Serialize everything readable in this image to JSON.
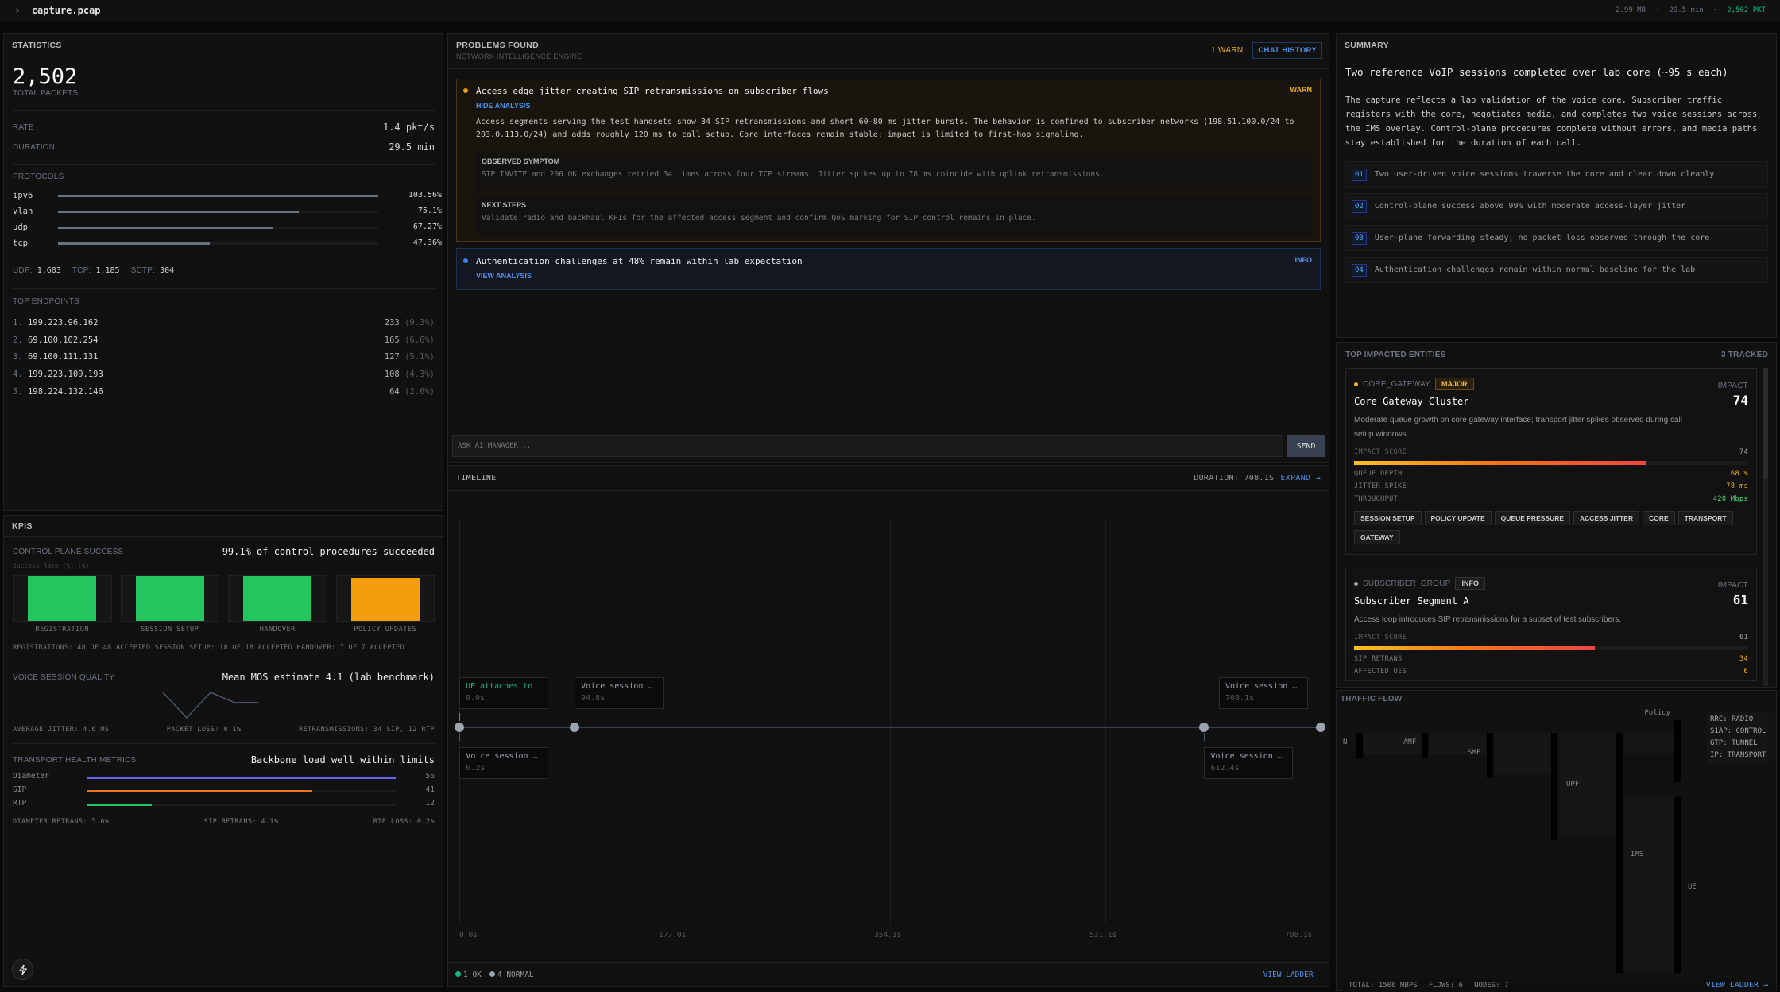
{
  "topbar": {
    "file": "capture.pcap",
    "size": "2.99 MB",
    "duration": "29.5 min",
    "packets": "2,502 PKT",
    "sep": "·"
  },
  "stats": {
    "title": "STATISTICS",
    "total": "2,502",
    "total_label": "TOTAL PACKETS",
    "rate_label": "RATE",
    "rate": "1.4 pkt/s",
    "duration_label": "DURATION",
    "duration": "29.5 min",
    "protocols_label": "PROTOCOLS",
    "protocols": [
      {
        "name": "ipv6",
        "pct": "103.56%",
        "value": 103.56
      },
      {
        "name": "vlan",
        "pct": "75.1%",
        "value": 75.1
      },
      {
        "name": "udp",
        "pct": "67.27%",
        "value": 67.27
      },
      {
        "name": "tcp",
        "pct": "47.36%",
        "value": 47.36
      }
    ],
    "counts": [
      {
        "label": "UDP:",
        "value": "1,683"
      },
      {
        "label": "TCP:",
        "value": "1,185"
      },
      {
        "label": "SCTP:",
        "value": "304"
      }
    ],
    "endpoints_label": "TOP ENDPOINTS",
    "endpoints": [
      {
        "rank": "1.",
        "ip": "199.223.96.162",
        "count": "233",
        "pct": "(9.3%)"
      },
      {
        "rank": "2.",
        "ip": "69.100.102.254",
        "count": "165",
        "pct": "(6.6%)"
      },
      {
        "rank": "3.",
        "ip": "69.100.111.131",
        "count": "127",
        "pct": "(5.1%)"
      },
      {
        "rank": "4.",
        "ip": "199.223.109.193",
        "count": "108",
        "pct": "(4.3%)"
      },
      {
        "rank": "5.",
        "ip": "198.224.132.146",
        "count": "64",
        "pct": "(2.6%)"
      }
    ]
  },
  "kpis": {
    "title": "KPIS",
    "control": {
      "label": "CONTROL PLANE SUCCESS",
      "headline": "99.1% of control procedures succeeded",
      "axis": "Success Rate (%) (%)",
      "bars": [
        {
          "name": "REGISTRATION",
          "value": 100,
          "color": "#22c55e"
        },
        {
          "name": "SESSION SETUP",
          "value": 100,
          "color": "#22c55e"
        },
        {
          "name": "HANDOVER",
          "value": 100,
          "color": "#22c55e"
        },
        {
          "name": "POLICY UPDATES",
          "value": 96,
          "color": "#f59e0b"
        }
      ],
      "footer": "REGISTRATIONS: 48 OF 48 ACCEPTED SESSION SETUP: 18 OF 18 ACCEPTED HANDOVER: 7 OF 7 ACCEPTED"
    },
    "voice": {
      "label": "VOICE SESSION QUALITY",
      "headline": "Mean MOS estimate 4.1 (lab benchmark)",
      "spark": [
        4.1,
        3.6,
        4.1,
        3.9,
        3.9
      ],
      "stats": [
        "AVERAGE JITTER: 4.6 MS",
        "PACKET LOSS: 0.1%",
        "RETRANSMISSIONS: 34 SIP, 12 RTP"
      ]
    },
    "transport": {
      "label": "TRANSPORT HEALTH METRICS",
      "headline": "Backbone load well within limits",
      "rows": [
        {
          "name": "Diameter",
          "value": "56",
          "fraction": 1.0,
          "color": "#6366f1"
        },
        {
          "name": "SIP",
          "value": "41",
          "fraction": 0.73,
          "color": "#f97316"
        },
        {
          "name": "RTP",
          "value": "12",
          "fraction": 0.21,
          "color": "#22c55e"
        }
      ],
      "stats": [
        "DIAMETER RETRANS: 5.6%",
        "SIP RETRANS: 4.1%",
        "RTP LOSS: 0.2%"
      ]
    }
  },
  "problems": {
    "title": "PROBLEMS FOUND",
    "subtitle": "NETWORK INTELLIGENCE ENGINE",
    "warn_count": "1 WARN",
    "chat_history": "CHAT HISTORY",
    "items": [
      {
        "title": "Access edge jitter creating SIP retransmissions on subscriber flows",
        "severity": "WARN",
        "toggle": "HIDE ANALYSIS",
        "body": "Access segments serving the test handsets show 34 SIP retransmissions and short 60-80 ms jitter bursts. The behavior is confined to subscriber networks (198.51.100.0/24 to 203.0.113.0/24) and adds roughly 120 ms to call setup. Core interfaces remain stable; impact is limited to first-hop signaling.",
        "symptom_label": "OBSERVED SYMPTOM",
        "symptom": "SIP INVITE and 200 OK exchanges retried 34 times across four TCP streams. Jitter spikes up to 78 ms coincide with uplink retransmissions.",
        "next_label": "NEXT STEPS",
        "next": "Validate radio and backhaul KPIs for the affected access segment and confirm QoS marking for SIP control remains in place."
      },
      {
        "title": "Authentication challenges at 48% remain within lab expectation",
        "severity": "INFO",
        "toggle": "VIEW ANALYSIS"
      }
    ],
    "input_placeholder": "ASK AI MANAGER...",
    "send": "SEND"
  },
  "timeline": {
    "title": "TIMELINE",
    "duration": "DURATION: 708.1S",
    "expand": "EXPAND →",
    "ticks": [
      "0.0s",
      "177.0s",
      "354.1s",
      "531.1s",
      "708.1s"
    ],
    "max": 708.1,
    "events": [
      {
        "label": "UE attaches to",
        "time": "0.0s",
        "t": 0,
        "pos": "above",
        "status": "ok"
      },
      {
        "label": "Voice session …",
        "time": "0.2s",
        "t": 0.2,
        "pos": "below",
        "status": "normal"
      },
      {
        "label": "Voice session …",
        "time": "94.8s",
        "t": 94.8,
        "pos": "above",
        "status": "normal"
      },
      {
        "label": "Voice session …",
        "time": "612.4s",
        "t": 612.4,
        "pos": "below",
        "status": "normal"
      },
      {
        "label": "Voice session …",
        "time": "708.1s",
        "t": 708.1,
        "pos": "above",
        "status": "normal"
      }
    ],
    "legend": [
      {
        "label": "1 OK",
        "color": "#10b981"
      },
      {
        "label": "4 NORMAL",
        "color": "#9ca3af"
      }
    ],
    "view_ladder": "VIEW LADDER →"
  },
  "summary": {
    "title": "SUMMARY",
    "headline": "Two reference VoIP sessions completed over lab core (~95 s each)",
    "body": "The capture reflects a lab validation of the voice core. Subscriber traffic registers with the core, negotiates media, and completes two voice sessions across the IMS overlay. Control-plane procedures complete without errors, and media paths stay established for the duration of each call.",
    "points": [
      {
        "n": "01",
        "text": "Two user-driven voice sessions traverse the core and clear down cleanly"
      },
      {
        "n": "02",
        "text": "Control-plane success above 99% with moderate access-layer jitter"
      },
      {
        "n": "03",
        "text": "User-plane forwarding steady; no packet loss observed through the core"
      },
      {
        "n": "04",
        "text": "Authentication challenges remain within normal baseline for the lab"
      }
    ]
  },
  "entities": {
    "title": "TOP IMPACTED ENTITIES",
    "tracked": "3 TRACKED",
    "impact_label": "IMPACT",
    "score_label": "IMPACT SCORE",
    "items": [
      {
        "type": "CORE_GATEWAY",
        "badge": "MAJOR",
        "dot": "#f5b316",
        "name": "Core Gateway Cluster",
        "impact": "74",
        "score": 74,
        "desc": "Moderate queue growth on core gateway interface; transport jitter spikes observed during call setup windows.",
        "metrics": [
          {
            "label": "QUEUE DEPTH",
            "value": "68 %",
            "color": "#f5b316"
          },
          {
            "label": "JITTER SPIKE",
            "value": "78 ms",
            "color": "#f5b316"
          },
          {
            "label": "THROUGHPUT",
            "value": "420 Mbps",
            "color": "#4ade80"
          }
        ],
        "tags": [
          "SESSION SETUP",
          "POLICY UPDATE",
          "QUEUE PRESSURE",
          "ACCESS JITTER",
          "CORE",
          "TRANSPORT",
          "GATEWAY"
        ]
      },
      {
        "type": "SUBSCRIBER_GROUP",
        "badge": "INFO",
        "dot": "#9ca3af",
        "name": "Subscriber Segment A",
        "impact": "61",
        "score": 61,
        "desc": "Access loop introduces SIP retransmissions for a subset of test subscribers.",
        "metrics": [
          {
            "label": "SIP RETRANS",
            "value": "34",
            "color": "#f5b316"
          },
          {
            "label": "AFFECTED UES",
            "value": "6",
            "color": "#f5b316"
          }
        ]
      }
    ]
  },
  "traffic": {
    "title": "TRAFFIC FLOW",
    "nodes": [
      "N",
      "AMF",
      "SMF",
      "UPF",
      "IMS",
      "Policy",
      "UE"
    ],
    "legend": [
      "RRC: RADIO",
      "S1AP: CONTROL",
      "GTP: TUNNEL",
      "IP: TRANSPORT"
    ],
    "footer": {
      "total": "TOTAL: 1506 MBPS",
      "flows": "FLOWS: 6",
      "nodes": "NODES: 7"
    },
    "view_ladder": "VIEW LADDER →"
  },
  "fab": {
    "icon": "lightning-icon"
  }
}
